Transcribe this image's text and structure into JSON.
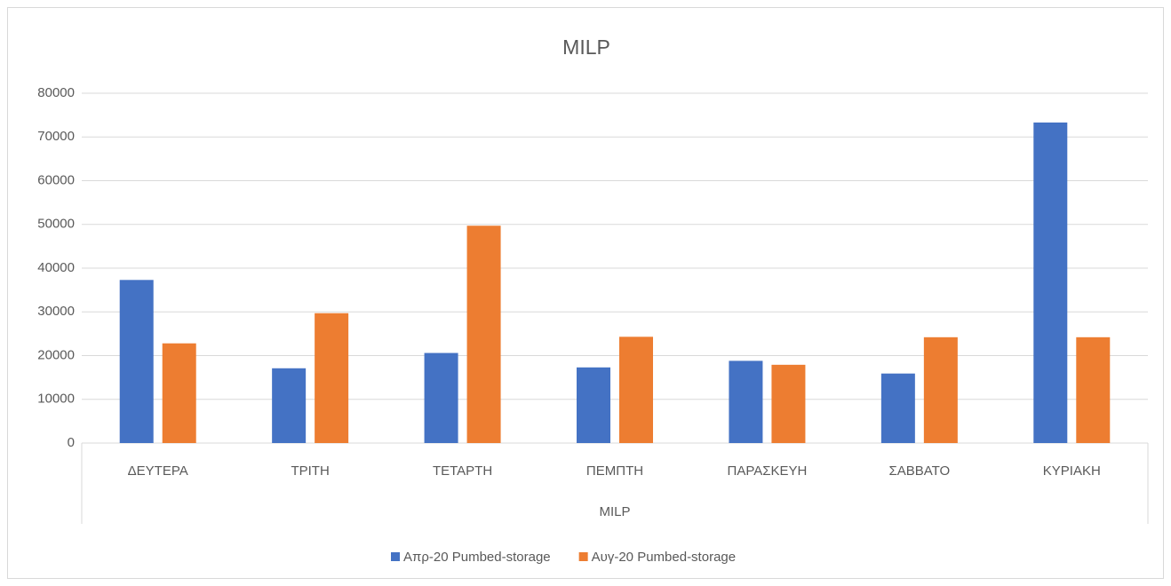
{
  "chart_data": {
    "type": "bar",
    "title": "MILP",
    "x_group_label": "MILP",
    "categories": [
      "ΔΕΥΤΕΡΑ",
      "ΤΡΙΤΗ",
      "ΤΕΤΑΡΤΗ",
      "ΠΕΜΠΤΗ",
      "ΠΑΡΑΣΚΕΥΗ",
      "ΣΑΒΒΑΤΟ",
      "ΚΥΡΙΑΚΗ"
    ],
    "series": [
      {
        "name": "Απρ-20 Pumbed-storage",
        "color": "#4472c4",
        "values": [
          37300,
          17100,
          20600,
          17300,
          18800,
          15900,
          73300
        ]
      },
      {
        "name": "Αυγ-20 Pumbed-storage",
        "color": "#ed7d31",
        "values": [
          22800,
          29700,
          49700,
          24300,
          17900,
          24200,
          24200
        ]
      }
    ],
    "ylim": [
      0,
      80000
    ],
    "yticks": [
      0,
      10000,
      20000,
      30000,
      40000,
      50000,
      60000,
      70000,
      80000
    ],
    "grid": true,
    "legend": "bottom"
  }
}
